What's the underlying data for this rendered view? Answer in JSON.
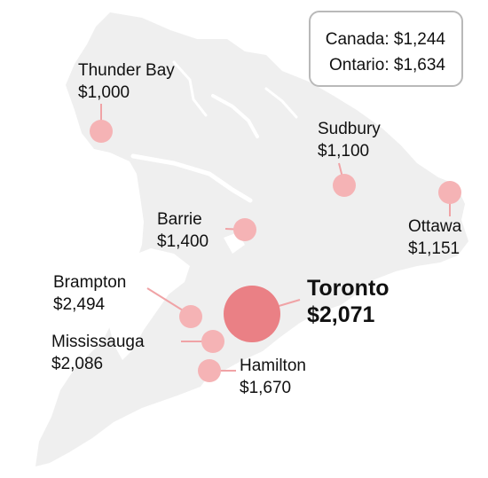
{
  "legend": {
    "canada": "Canada: $1,244",
    "ontario": "Ontario: $1,634"
  },
  "colors": {
    "land": "#efefef",
    "water": "#ffffff",
    "bubble": "#f5b3b5",
    "bubble_highlight": "#ea8085",
    "leader_line": "#f0a3a6",
    "text": "#111111"
  },
  "cities": [
    {
      "id": "thunder-bay",
      "name": "Thunder Bay",
      "rent": "$1,000",
      "rent_value": 1000,
      "highlight": false
    },
    {
      "id": "sudbury",
      "name": "Sudbury",
      "rent": "$1,100",
      "rent_value": 1100,
      "highlight": false
    },
    {
      "id": "ottawa",
      "name": "Ottawa",
      "rent": "$1,151",
      "rent_value": 1151,
      "highlight": false
    },
    {
      "id": "barrie",
      "name": "Barrie",
      "rent": "$1,400",
      "rent_value": 1400,
      "highlight": false
    },
    {
      "id": "brampton",
      "name": "Brampton",
      "rent": "$2,494",
      "rent_value": 2494,
      "highlight": false
    },
    {
      "id": "toronto",
      "name": "Toronto",
      "rent": "$2,071",
      "rent_value": 2071,
      "highlight": true
    },
    {
      "id": "mississauga",
      "name": "Mississauga",
      "rent": "$2,086",
      "rent_value": 2086,
      "highlight": false
    },
    {
      "id": "hamilton",
      "name": "Hamilton",
      "rent": "$1,670",
      "rent_value": 1670,
      "highlight": false
    }
  ]
}
